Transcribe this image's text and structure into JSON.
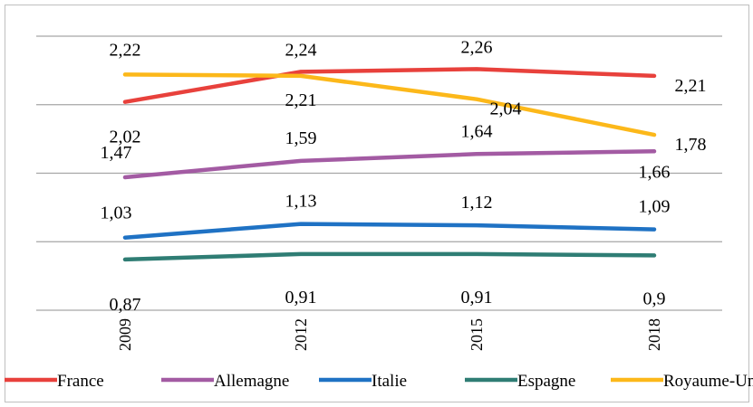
{
  "chart_data": {
    "type": "line",
    "categories": [
      "2009",
      "2012",
      "2015",
      "2018"
    ],
    "series": [
      {
        "name": "France",
        "color": "#e8413c",
        "values": [
          2.02,
          2.24,
          2.26,
          2.21
        ],
        "labels": [
          "2,02",
          "2,24",
          "2,26",
          "2,21"
        ]
      },
      {
        "name": "Allemagne",
        "color": "#a35ba3",
        "values": [
          1.47,
          1.59,
          1.64,
          1.66
        ],
        "labels": [
          "1,47",
          "1,59",
          "1,64",
          "1,66"
        ]
      },
      {
        "name": "Italie",
        "color": "#1f72c4",
        "values": [
          1.03,
          1.13,
          1.12,
          1.09
        ],
        "labels": [
          "1,03",
          "1,13",
          "1,12",
          "1,09"
        ]
      },
      {
        "name": "Espagne",
        "color": "#2f7d74",
        "values": [
          0.87,
          0.91,
          0.91,
          0.9
        ],
        "labels": [
          "0,87",
          "0,91",
          "0,91",
          "0,9"
        ]
      },
      {
        "name": "Royaume-Uni",
        "color": "#fcb81a",
        "values": [
          2.22,
          2.21,
          2.04,
          1.78
        ],
        "labels": [
          "2,22",
          "2,21",
          "2,04",
          "1,78"
        ]
      }
    ],
    "title": "",
    "xlabel": "",
    "ylabel": "",
    "ylim": [
      0.5,
      2.5
    ],
    "y_gridlines": [
      0.5,
      1.0,
      1.5,
      2.0,
      2.5
    ],
    "grid": true,
    "legend": "bottom"
  }
}
